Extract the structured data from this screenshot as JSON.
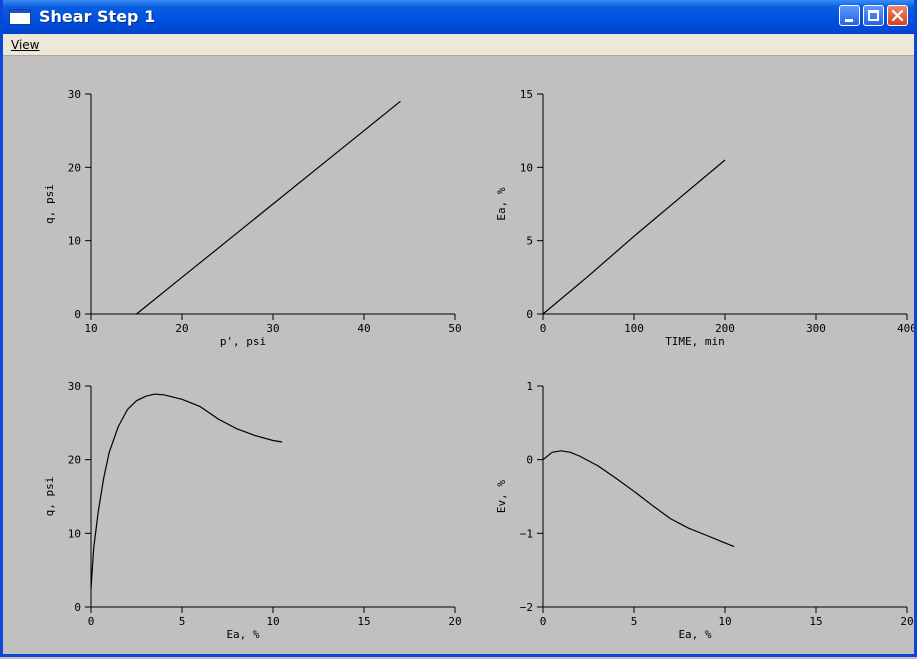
{
  "window": {
    "title": "Shear Step 1",
    "title_icon": "window-icon",
    "controls": [
      "minimize-icon",
      "maximize-icon",
      "close-icon"
    ],
    "accent": "#0050e0",
    "background": "#c0c0c0"
  },
  "menu": {
    "items": [
      {
        "label": "View"
      }
    ]
  },
  "chart_data": [
    {
      "type": "line",
      "xlabel": "p', psi",
      "ylabel": "q, psi",
      "xlim": [
        10,
        50
      ],
      "ylim": [
        0,
        30
      ],
      "xticks": [
        10,
        20,
        30,
        40,
        50
      ],
      "yticks": [
        0,
        10,
        20,
        30
      ],
      "series": [
        {
          "x": [
            15,
            20,
            25,
            30,
            35,
            40,
            44
          ],
          "y": [
            0,
            5,
            10,
            15,
            20,
            25,
            29
          ]
        }
      ]
    },
    {
      "type": "line",
      "xlabel": "TIME, min",
      "ylabel": "Ea, %",
      "xlim": [
        0,
        400
      ],
      "ylim": [
        0,
        15
      ],
      "xticks": [
        0,
        100,
        200,
        300,
        400
      ],
      "yticks": [
        0,
        5,
        10,
        15
      ],
      "series": [
        {
          "x": [
            0,
            50,
            100,
            150,
            200
          ],
          "y": [
            0,
            2.6,
            5.3,
            7.9,
            10.5
          ]
        }
      ]
    },
    {
      "type": "line",
      "xlabel": "Ea, %",
      "ylabel": "q, psi",
      "xlim": [
        0,
        20
      ],
      "ylim": [
        0,
        30
      ],
      "xticks": [
        0,
        5,
        10,
        15,
        20
      ],
      "yticks": [
        0,
        10,
        20,
        30
      ],
      "series": [
        {
          "x": [
            0,
            0.15,
            0.4,
            0.7,
            1.0,
            1.5,
            2.0,
            2.5,
            3.0,
            3.5,
            4.0,
            5.0,
            6.0,
            7.0,
            8.0,
            9.0,
            10.0,
            10.5
          ],
          "y": [
            2.5,
            8,
            13,
            17.5,
            21,
            24.5,
            26.8,
            28,
            28.6,
            28.9,
            28.8,
            28.2,
            27.2,
            25.5,
            24.2,
            23.3,
            22.6,
            22.4
          ]
        }
      ]
    },
    {
      "type": "line",
      "xlabel": "Ea, %",
      "ylabel": "Ev, %",
      "xlim": [
        0,
        20
      ],
      "ylim": [
        -2,
        1
      ],
      "xticks": [
        0,
        5,
        10,
        15,
        20
      ],
      "yticks": [
        -2,
        -1,
        0,
        1
      ],
      "series": [
        {
          "x": [
            0,
            0.5,
            1.0,
            1.5,
            2.0,
            3.0,
            4.0,
            5.0,
            6.0,
            7.0,
            8.0,
            9.0,
            10.0,
            10.5
          ],
          "y": [
            0.0,
            0.1,
            0.12,
            0.1,
            0.05,
            -0.08,
            -0.25,
            -0.43,
            -0.62,
            -0.8,
            -0.93,
            -1.03,
            -1.13,
            -1.18
          ]
        }
      ]
    }
  ]
}
